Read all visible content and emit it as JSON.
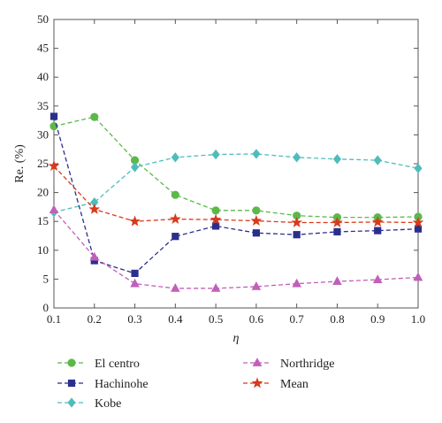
{
  "chart_data": {
    "type": "line",
    "xlabel": "η",
    "ylabel": "Re. (%)",
    "xlim": [
      0.1,
      1.0
    ],
    "ylim": [
      0,
      50
    ],
    "x_ticks": [
      "0.1",
      "0.2",
      "0.3",
      "0.4",
      "0.5",
      "0.6",
      "0.7",
      "0.8",
      "0.9",
      "1.0"
    ],
    "y_ticks": [
      "0",
      "5",
      "10",
      "15",
      "20",
      "25",
      "30",
      "35",
      "40",
      "45",
      "50"
    ],
    "x": [
      0.1,
      0.2,
      0.3,
      0.4,
      0.5,
      0.6,
      0.7,
      0.8,
      0.9,
      1.0
    ],
    "series": [
      {
        "name": "El centro",
        "marker": "circle",
        "color": "#5cb84a",
        "values": [
          31.5,
          33.1,
          25.6,
          19.6,
          16.9,
          16.9,
          16.0,
          15.7,
          15.7,
          15.8
        ]
      },
      {
        "name": "Hachinohe",
        "marker": "square",
        "color": "#2b2f8c",
        "values": [
          33.2,
          8.2,
          6.0,
          12.4,
          14.2,
          13.0,
          12.7,
          13.2,
          13.4,
          13.7
        ]
      },
      {
        "name": "Kobe",
        "marker": "diamond",
        "color": "#4fbcbc",
        "values": [
          16.6,
          18.3,
          24.4,
          26.1,
          26.6,
          26.7,
          26.1,
          25.8,
          25.6,
          24.2
        ]
      },
      {
        "name": "Northridge",
        "marker": "triangle",
        "color": "#c060b8",
        "values": [
          17.0,
          8.8,
          4.2,
          3.4,
          3.4,
          3.7,
          4.2,
          4.6,
          4.9,
          5.3
        ]
      },
      {
        "name": "Mean",
        "marker": "star",
        "color": "#d83a1c",
        "values": [
          24.6,
          17.1,
          15.0,
          15.4,
          15.3,
          15.1,
          14.8,
          14.8,
          14.9,
          14.8
        ]
      }
    ],
    "grid": false,
    "legend_position": "bottom"
  }
}
